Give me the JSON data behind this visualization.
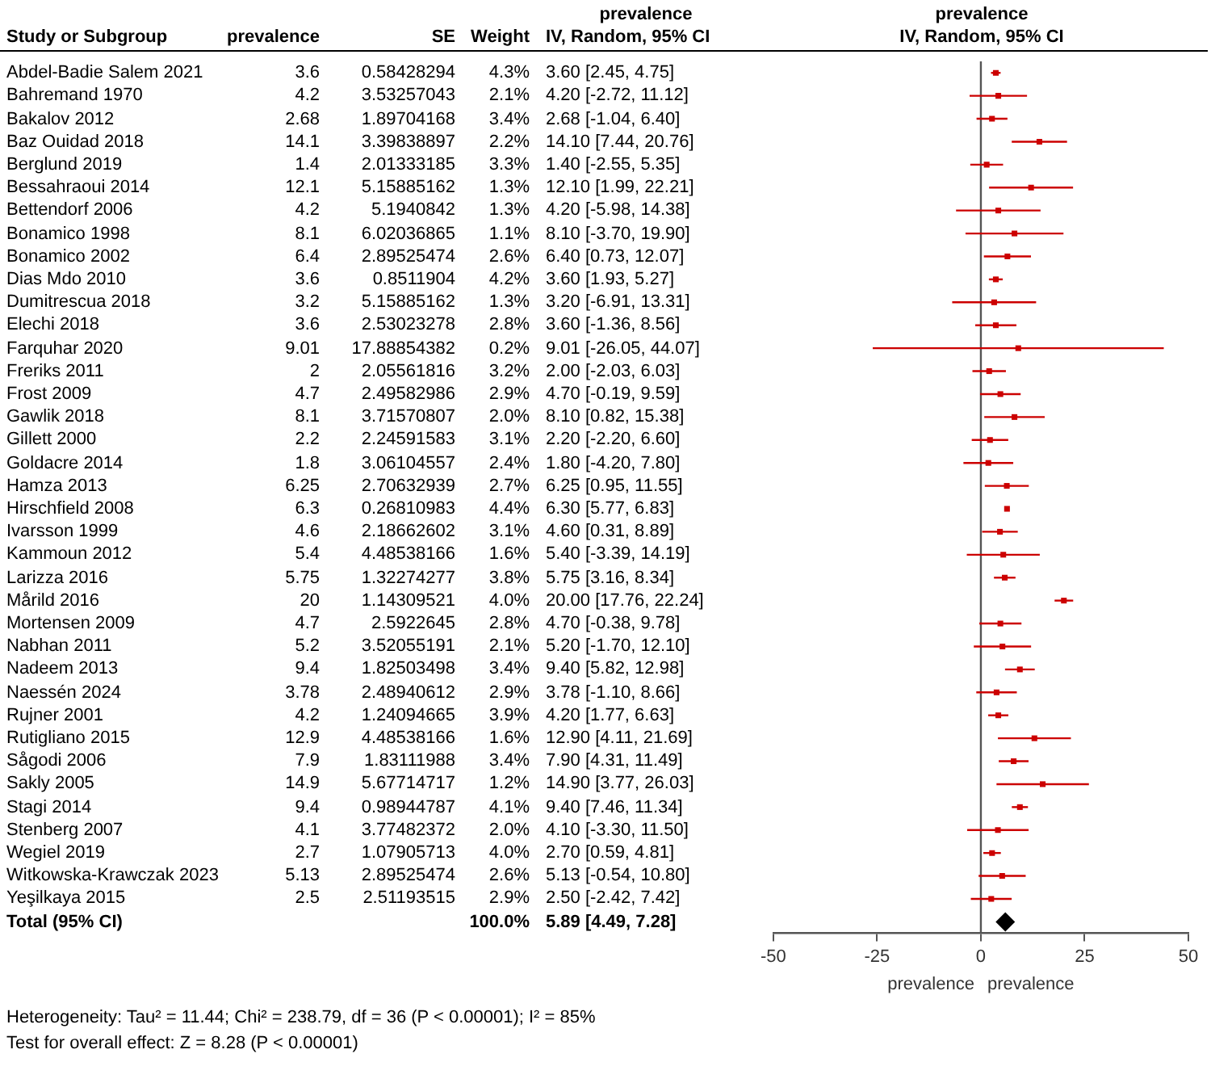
{
  "chart_data": [
    {
      "type": "other",
      "ylabel": "Study or Subgroup",
      "subtitle": "prevalence",
      "data_labels": true,
      "categories": [
        "Abdel-Badie Salem 2021",
        "Bahremand 1970",
        "Bakalov 2012",
        "Baz Ouidad 2018",
        "Berglund 2019",
        "Bessahraoui 2014",
        "Bettendorf 2006",
        "Bonamico 1998",
        "Bonamico 2002",
        "Dias Mdo 2010",
        "Dumitrescua 2018",
        "Elechi 2018",
        "Farquhar 2020",
        "Freriks 2011",
        "Frost 2009",
        "Gawlik 2018",
        "Gillett 2000",
        "Goldacre 2014",
        "Hamza 2013",
        "Hirschfield 2008",
        "Ivarsson 1999",
        "Kammoun 2012",
        "Larizza 2016",
        "Mårild 2016",
        "Mortensen 2009",
        "Nabhan 2011",
        "Nadeem 2013",
        "Naessén 2024",
        "Rujner 2001",
        "Rutigliano 2015",
        "Sågodi 2006",
        "Sakly 2005",
        "Stagi 2014",
        "Stenberg 2007",
        "Wegiel 2019",
        "Witkowska-Krawczak 2023",
        "Yeşilkaya 2015",
        "Total (95% CI)"
      ],
      "series": [
        {
          "name": "prevalence",
          "values": [
            3.6,
            4.2,
            2.68,
            14.1,
            1.4,
            12.1,
            4.2,
            8.1,
            6.4,
            3.6,
            3.2,
            3.6,
            9.01,
            2,
            4.7,
            8.1,
            2.2,
            1.8,
            6.25,
            6.3,
            4.6,
            5.4,
            5.75,
            20,
            4.7,
            5.2,
            9.4,
            3.78,
            4.2,
            12.9,
            7.9,
            14.9,
            9.4,
            4.1,
            2.7,
            5.13,
            2.5,
            null
          ]
        },
        {
          "name": "SE",
          "values": [
            0.58428294,
            3.53257043,
            1.89704168,
            3.39838897,
            2.01333185,
            5.15885162,
            5.1940842,
            6.02036865,
            2.89525474,
            0.8511904,
            5.15885162,
            2.53023278,
            17.88854382,
            2.05561816,
            2.49582986,
            3.71570807,
            2.24591583,
            3.06104557,
            2.70632939,
            0.26810983,
            2.18662602,
            4.48538166,
            1.32274277,
            1.14309521,
            2.5922645,
            3.52055191,
            1.82503498,
            2.48940612,
            1.24094665,
            4.48538166,
            1.83111988,
            5.67714717,
            0.98944787,
            3.77482372,
            1.07905713,
            2.89525474,
            2.51193515,
            null
          ]
        },
        {
          "name": "Weight",
          "values": [
            4.3,
            2.1,
            3.4,
            2.2,
            3.3,
            1.3,
            1.3,
            1.1,
            2.6,
            4.2,
            1.3,
            2.8,
            0.2,
            3.2,
            2.9,
            2.0,
            3.1,
            2.4,
            2.7,
            4.4,
            3.1,
            1.6,
            3.8,
            4.0,
            2.8,
            2.1,
            3.4,
            2.9,
            3.9,
            1.6,
            3.4,
            1.2,
            4.1,
            2.0,
            4.0,
            2.6,
            2.9,
            100.0
          ],
          "value_labels": [
            "4.3%",
            "2.1%",
            "3.4%",
            "2.2%",
            "3.3%",
            "1.3%",
            "1.3%",
            "1.1%",
            "2.6%",
            "4.2%",
            "1.3%",
            "2.8%",
            "0.2%",
            "3.2%",
            "2.9%",
            "2.0%",
            "3.1%",
            "2.4%",
            "2.7%",
            "4.4%",
            "3.1%",
            "1.6%",
            "3.8%",
            "4.0%",
            "2.8%",
            "2.1%",
            "3.4%",
            "2.9%",
            "3.9%",
            "1.6%",
            "3.4%",
            "1.2%",
            "4.1%",
            "2.0%",
            "4.0%",
            "2.6%",
            "2.9%",
            "100.0%"
          ]
        },
        {
          "name": "IV, Random, 95% CI",
          "values": [
            3.6,
            4.2,
            2.68,
            14.1,
            1.4,
            12.1,
            4.2,
            8.1,
            6.4,
            3.6,
            3.2,
            3.6,
            9.01,
            2,
            4.7,
            8.1,
            2.2,
            1.8,
            6.25,
            6.3,
            4.6,
            5.4,
            5.75,
            20,
            4.7,
            5.2,
            9.4,
            3.78,
            4.2,
            12.9,
            7.9,
            14.9,
            9.4,
            4.1,
            2.7,
            5.13,
            2.5,
            5.89
          ],
          "value_labels": [
            "3.60 [2.45, 4.75]",
            "4.20 [-2.72, 11.12]",
            "2.68 [-1.04, 6.40]",
            "14.10 [7.44, 20.76]",
            "1.40 [-2.55, 5.35]",
            "12.10 [1.99, 22.21]",
            "4.20 [-5.98, 14.38]",
            "8.10 [-3.70, 19.90]",
            "6.40 [0.73, 12.07]",
            "3.60 [1.93, 5.27]",
            "3.20 [-6.91, 13.31]",
            "3.60 [-1.36, 8.56]",
            "9.01 [-26.05, 44.07]",
            "2.00 [-2.03, 6.03]",
            "4.70 [-0.19, 9.59]",
            "8.10 [0.82, 15.38]",
            "2.20 [-2.20, 6.60]",
            "1.80 [-4.20, 7.80]",
            "6.25 [0.95, 11.55]",
            "6.30 [5.77, 6.83]",
            "4.60 [0.31, 8.89]",
            "5.40 [-3.39, 14.19]",
            "5.75 [3.16, 8.34]",
            "20.00 [17.76, 22.24]",
            "4.70 [-0.38, 9.78]",
            "5.20 [-1.70, 12.10]",
            "9.40 [5.82, 12.98]",
            "3.78 [-1.10, 8.66]",
            "4.20 [1.77, 6.63]",
            "12.90 [4.11, 21.69]",
            "7.90 [4.31, 11.49]",
            "14.90 [3.77, 26.03]",
            "9.40 [7.46, 11.34]",
            "4.10 [-3.30, 11.50]",
            "2.70 [0.59, 4.81]",
            "5.13 [-0.54, 10.80]",
            "2.50 [-2.42, 7.42]",
            "5.89 [4.49, 7.28]"
          ]
        }
      ],
      "annotations": [
        "Heterogeneity: Tau² = 11.44; Chi² = 238.79, df = 36 (P < 0.00001); I² = 85%",
        "Test for overall effect: Z = 8.28 (P < 0.00001)"
      ]
    },
    {
      "type": "scatter",
      "title": "prevalence",
      "subtitle": "IV, Random, 95% CI",
      "orientation": "horizontal",
      "categories": [
        null,
        null,
        null,
        null,
        null,
        null,
        null,
        null,
        null,
        null,
        null,
        null,
        null,
        null,
        null,
        null,
        null,
        null,
        null,
        null,
        null,
        null,
        null,
        null,
        null,
        null,
        null,
        null,
        null,
        null,
        null,
        null,
        null,
        null,
        null,
        null,
        null,
        null
      ],
      "series": [
        {
          "color": "#cc0000",
          "marker": "square",
          "values": [
            3.6,
            4.2,
            2.68,
            14.1,
            1.4,
            12.1,
            4.2,
            8.1,
            6.4,
            3.6,
            3.2,
            3.6,
            9.01,
            2,
            4.7,
            8.1,
            2.2,
            1.8,
            6.25,
            6.3,
            4.6,
            5.4,
            5.75,
            20,
            4.7,
            5.2,
            9.4,
            3.78,
            4.2,
            12.9,
            7.9,
            14.9,
            9.4,
            4.1,
            2.7,
            5.13,
            2.5,
            null
          ],
          "errors": [
            [
              2.45,
              4.75
            ],
            [
              -2.72,
              11.12
            ],
            [
              -1.04,
              6.4
            ],
            [
              7.44,
              20.76
            ],
            [
              -2.55,
              5.35
            ],
            [
              1.99,
              22.21
            ],
            [
              -5.98,
              14.38
            ],
            [
              -3.7,
              19.9
            ],
            [
              0.73,
              12.07
            ],
            [
              1.93,
              5.27
            ],
            [
              -6.91,
              13.31
            ],
            [
              -1.36,
              8.56
            ],
            [
              -26.05,
              44.07
            ],
            [
              -2.03,
              6.03
            ],
            [
              -0.19,
              9.59
            ],
            [
              0.82,
              15.38
            ],
            [
              -2.2,
              6.6
            ],
            [
              -4.2,
              7.8
            ],
            [
              0.95,
              11.55
            ],
            [
              5.77,
              6.83
            ],
            [
              0.31,
              8.89
            ],
            [
              -3.39,
              14.19
            ],
            [
              3.16,
              8.34
            ],
            [
              17.76,
              22.24
            ],
            [
              -0.38,
              9.78
            ],
            [
              -1.7,
              12.1
            ],
            [
              5.82,
              12.98
            ],
            [
              -1.1,
              8.66
            ],
            [
              1.77,
              6.63
            ],
            [
              4.11,
              21.69
            ],
            [
              4.31,
              11.49
            ],
            [
              3.77,
              26.03
            ],
            [
              7.46,
              11.34
            ],
            [
              -3.3,
              11.5
            ],
            [
              0.59,
              4.81
            ],
            [
              -0.54,
              10.8
            ],
            [
              -2.42,
              7.42
            ],
            null
          ]
        },
        {
          "color": "#000000",
          "marker": "diamond",
          "values": [
            null,
            null,
            null,
            null,
            null,
            null,
            null,
            null,
            null,
            null,
            null,
            null,
            null,
            null,
            null,
            null,
            null,
            null,
            null,
            null,
            null,
            null,
            null,
            null,
            null,
            null,
            null,
            null,
            null,
            null,
            null,
            null,
            null,
            null,
            null,
            null,
            null,
            5.89
          ],
          "errors": [
            null,
            null,
            null,
            null,
            null,
            null,
            null,
            null,
            null,
            null,
            null,
            null,
            null,
            null,
            null,
            null,
            null,
            null,
            null,
            null,
            null,
            null,
            null,
            null,
            null,
            null,
            null,
            null,
            null,
            null,
            null,
            null,
            null,
            null,
            null,
            null,
            null,
            [
              4.49,
              7.28
            ]
          ]
        }
      ],
      "xlim": [
        -50,
        50
      ],
      "xticks": [
        -50,
        -25,
        0,
        25,
        50
      ],
      "ref_lines": [
        {
          "axis": "x",
          "value": 0,
          "color": "#555555"
        }
      ],
      "annotations": [
        "prevalence",
        "prevalence"
      ],
      "grid": false,
      "legend": false
    }
  ]
}
